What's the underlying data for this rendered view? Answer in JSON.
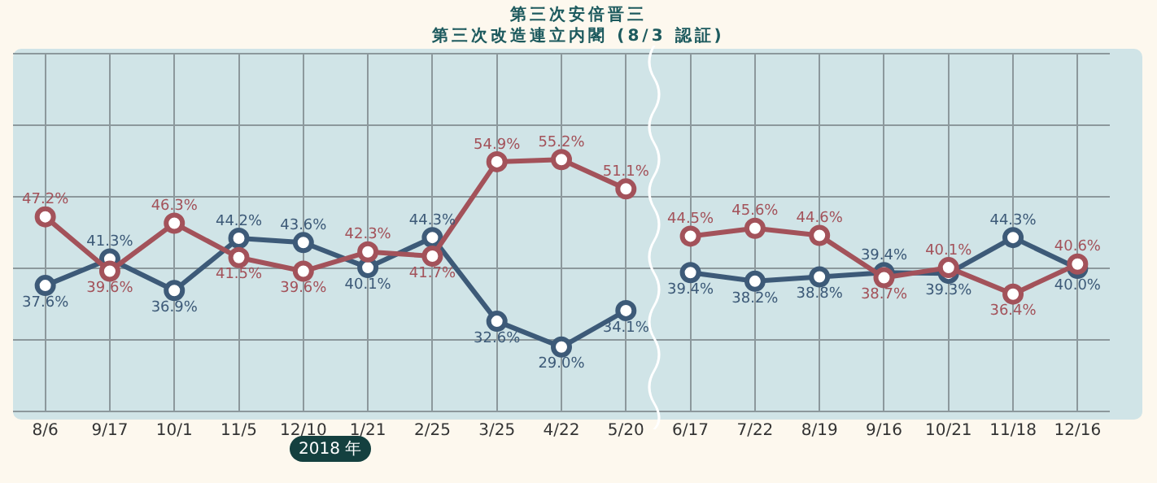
{
  "chart_data": {
    "type": "line",
    "title": "第三次安倍晋三",
    "subtitle": "第三次改造連立内閣 (8/3 認証)",
    "categories": [
      "8/6",
      "9/17",
      "10/1",
      "11/5",
      "12/10",
      "1/21",
      "2/25",
      "3/25",
      "4/22",
      "5/20",
      "6/17",
      "7/22",
      "8/19",
      "9/16",
      "10/21",
      "11/18",
      "12/16"
    ],
    "series": [
      {
        "color": "#a3525a",
        "values": [
          47.2,
          39.6,
          46.3,
          41.5,
          39.6,
          42.3,
          41.7,
          54.9,
          55.2,
          51.1,
          null,
          null,
          null,
          null,
          null,
          null,
          null
        ],
        "value_labels": [
          "47.2%",
          "39.6%",
          "46.3%",
          "41.5%",
          "39.6%",
          "42.3%",
          "41.7%",
          "54.9%",
          "55.2%",
          "51.1%",
          null,
          null,
          null,
          null,
          null,
          null,
          null
        ]
      },
      {
        "color": "#3d5a78",
        "values": [
          37.6,
          41.3,
          36.9,
          44.2,
          43.6,
          40.1,
          44.3,
          32.6,
          29.0,
          34.1,
          null,
          null,
          null,
          null,
          null,
          null,
          null
        ],
        "value_labels": [
          "37.6%",
          "41.3%",
          "36.9%",
          "44.2%",
          "43.6%",
          "40.1%",
          "44.3%",
          "32.6%",
          "29.0%",
          "34.1%",
          null,
          null,
          null,
          null,
          null,
          null,
          null
        ]
      },
      {
        "color": "#a3525a",
        "values": [
          null,
          null,
          null,
          null,
          null,
          null,
          null,
          null,
          null,
          null,
          44.5,
          45.6,
          44.6,
          38.7,
          40.1,
          36.4,
          40.6
        ],
        "value_labels": [
          null,
          null,
          null,
          null,
          null,
          null,
          null,
          null,
          null,
          null,
          "44.5%",
          "45.6%",
          "44.6%",
          "38.7%",
          "40.1%",
          "36.4%",
          "40.6%"
        ]
      },
      {
        "color": "#3d5a78",
        "values": [
          null,
          null,
          null,
          null,
          null,
          null,
          null,
          null,
          null,
          null,
          39.4,
          38.2,
          38.8,
          39.4,
          39.3,
          44.3,
          40.0
        ],
        "value_labels": [
          null,
          null,
          null,
          null,
          null,
          null,
          null,
          null,
          null,
          null,
          "39.4%",
          "38.2%",
          "38.8%",
          "39.4%",
          "39.3%",
          "44.3%",
          "40.0%"
        ]
      }
    ],
    "tick_labels": "x",
    "grid": true,
    "legend": false,
    "marker": "circle",
    "line_style": "solid",
    "annotations": [
      "2018 年"
    ]
  }
}
